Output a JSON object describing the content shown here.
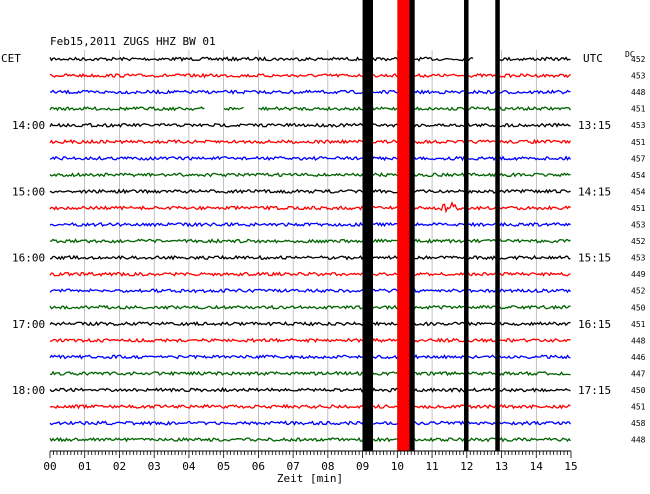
{
  "title": "Feb15,2011   ZUGS HHZ BW 01",
  "left_axis_label": "CET",
  "right_axis_label": "UTC",
  "dc_label": "DC",
  "chart_data": {
    "type": "line",
    "xlabel": "Zeit [min]",
    "xlim": [
      0,
      15
    ],
    "x_tick_labels": [
      "00",
      "01",
      "02",
      "03",
      "04",
      "05",
      "06",
      "07",
      "08",
      "09",
      "10",
      "11",
      "12",
      "13",
      "14",
      "15"
    ],
    "left_time_labels": [
      {
        "trace": 4,
        "label": "14:00"
      },
      {
        "trace": 8,
        "label": "15:00"
      },
      {
        "trace": 12,
        "label": "16:00"
      },
      {
        "trace": 16,
        "label": "17:00"
      },
      {
        "trace": 20,
        "label": "18:00"
      }
    ],
    "right_time_labels": [
      {
        "trace": 0,
        "label": "UTC"
      },
      {
        "trace": 4,
        "label": "13:15"
      },
      {
        "trace": 8,
        "label": "14:15"
      },
      {
        "trace": 12,
        "label": "15:15"
      },
      {
        "trace": 16,
        "label": "16:15"
      },
      {
        "trace": 20,
        "label": "17:15"
      }
    ],
    "trace_colors": [
      "#000000",
      "#ff0000",
      "#0000ff",
      "#006400"
    ],
    "dc_values": [
      "452",
      "453",
      "448",
      "451",
      "453",
      "451",
      "457",
      "454",
      "454",
      "451",
      "453",
      "452",
      "453",
      "449",
      "452",
      "450",
      "451",
      "448",
      "446",
      "447",
      "450",
      "451",
      "458",
      "448"
    ],
    "events": [
      {
        "minute_start": 9.0,
        "minute_end": 9.3,
        "color": "#000000",
        "kind": "broad"
      },
      {
        "minute_start": 10.0,
        "minute_end": 10.35,
        "color": "#ff0000",
        "kind": "broad"
      },
      {
        "minute_start": 10.35,
        "minute_end": 10.5,
        "color": "#000000",
        "kind": "thin"
      },
      {
        "minute_start": 11.92,
        "minute_end": 12.05,
        "color": "#000000",
        "kind": "thin"
      },
      {
        "minute_start": 12.82,
        "minute_end": 12.95,
        "color": "#000000",
        "kind": "thin"
      }
    ],
    "gaps": [
      {
        "trace": 3,
        "minute_start": 4.45,
        "minute_end": 5.0
      },
      {
        "trace": 3,
        "minute_start": 5.6,
        "minute_end": 6.0
      },
      {
        "trace": 0,
        "minute_start": 12.2,
        "minute_end": 12.85
      }
    ],
    "local_bursts": [
      {
        "trace": 9,
        "minute": 11.5,
        "color": "#ff0000"
      }
    ],
    "grid": true
  }
}
